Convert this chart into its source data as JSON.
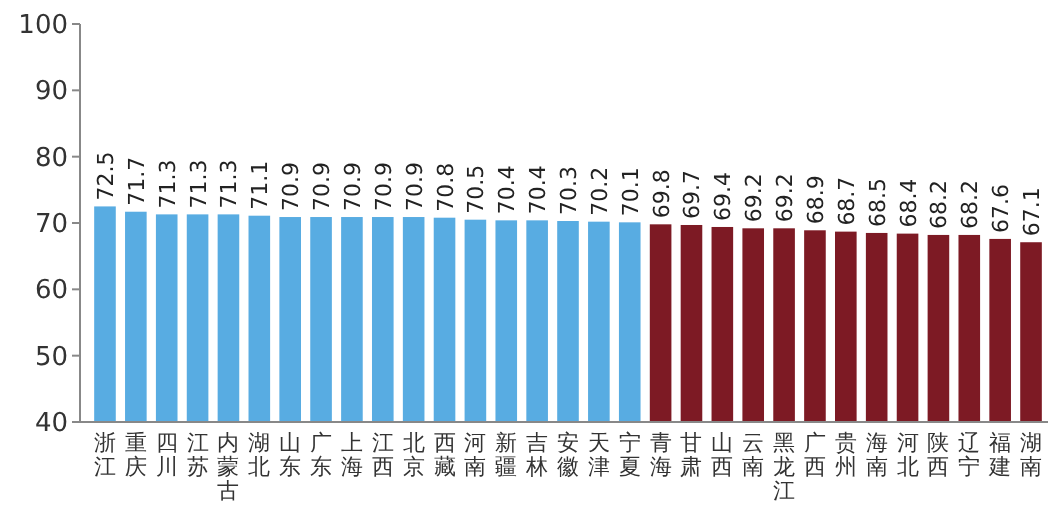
{
  "chart_data": {
    "type": "bar",
    "categories": [
      "浙江",
      "重庆",
      "四川",
      "江苏",
      "内蒙古",
      "湖北",
      "山东",
      "广东",
      "上海",
      "江西",
      "北京",
      "西藏",
      "河南",
      "新疆",
      "吉林",
      "安徽",
      "天津",
      "宁夏",
      "青海",
      "甘肃",
      "山西",
      "云南",
      "黑龙江",
      "广西",
      "贵州",
      "海南",
      "河北",
      "陕西",
      "辽宁",
      "福建",
      "湖南"
    ],
    "values": [
      72.5,
      71.7,
      71.3,
      71.3,
      71.3,
      71.1,
      70.9,
      70.9,
      70.9,
      70.9,
      70.9,
      70.8,
      70.5,
      70.4,
      70.4,
      70.3,
      70.2,
      70.1,
      69.8,
      69.7,
      69.4,
      69.2,
      69.2,
      68.9,
      68.7,
      68.5,
      68.4,
      68.2,
      68.2,
      67.6,
      67.1
    ],
    "colors": [
      "#58ace2",
      "#58ace2",
      "#58ace2",
      "#58ace2",
      "#58ace2",
      "#58ace2",
      "#58ace2",
      "#58ace2",
      "#58ace2",
      "#58ace2",
      "#58ace2",
      "#58ace2",
      "#58ace2",
      "#58ace2",
      "#58ace2",
      "#58ace2",
      "#58ace2",
      "#58ace2",
      "#7d1a24",
      "#7d1a24",
      "#7d1a24",
      "#7d1a24",
      "#7d1a24",
      "#7d1a24",
      "#7d1a24",
      "#7d1a24",
      "#7d1a24",
      "#7d1a24",
      "#7d1a24",
      "#7d1a24",
      "#7d1a24"
    ],
    "ylim": [
      40,
      100
    ],
    "yticks": [
      40,
      50,
      60,
      70,
      80,
      90,
      100
    ],
    "data_labels": true,
    "grid": false
  }
}
